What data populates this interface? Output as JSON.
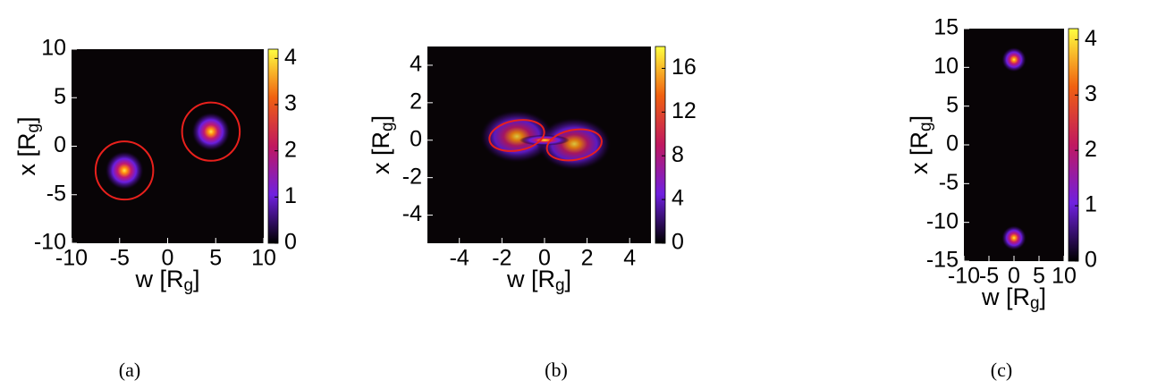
{
  "chart_data": [
    {
      "type": "heatmap",
      "caption": "(a)",
      "xlabel": "w [Rg]",
      "ylabel": "x [Rg]",
      "xlim": [
        -10,
        10
      ],
      "ylim": [
        -10,
        10
      ],
      "xticks": [
        -10,
        -5,
        0,
        5,
        10
      ],
      "yticks": [
        -10,
        -5,
        0,
        5,
        10
      ],
      "clim": [
        0,
        4.2
      ],
      "cticks": [
        0,
        1,
        2,
        3,
        4
      ],
      "peaks": [
        {
          "w": -4.5,
          "x": -2.5,
          "value": 4
        },
        {
          "w": 4.5,
          "x": 1.5,
          "value": 4
        }
      ],
      "contours": [
        {
          "w": -4.5,
          "x": -2.5,
          "rw": 3,
          "rx": 3,
          "angle": 0
        },
        {
          "w": 4.5,
          "x": 1.5,
          "rw": 3,
          "rx": 3,
          "angle": 0
        }
      ]
    },
    {
      "type": "heatmap",
      "caption": "(b)",
      "xlabel": "w [Rg]",
      "ylabel": "x [Rg]",
      "xlim": [
        -5.5,
        5
      ],
      "ylim": [
        -5.5,
        5
      ],
      "xticks": [
        -4,
        -2,
        0,
        2,
        4
      ],
      "yticks": [
        -4,
        -2,
        0,
        2,
        4
      ],
      "clim": [
        0,
        18
      ],
      "cticks": [
        0,
        4,
        8,
        12,
        16
      ],
      "peaks": [
        {
          "w": -1.3,
          "x": 0.2,
          "value": 5
        },
        {
          "w": 1.4,
          "x": -0.2,
          "value": 5
        },
        {
          "w": 0,
          "x": 0,
          "value": 17
        }
      ],
      "contours": [
        {
          "w": -1.3,
          "x": 0.25,
          "rw": 1.3,
          "rx": 0.8,
          "angle": -10
        },
        {
          "w": 1.4,
          "x": -0.25,
          "rw": 1.3,
          "rx": 0.8,
          "angle": -10
        }
      ]
    },
    {
      "type": "heatmap",
      "caption": "(c)",
      "xlabel": "w [Rg]",
      "ylabel": "x [Rg]",
      "xlim": [
        -10,
        10
      ],
      "ylim": [
        -15,
        15
      ],
      "xticks": [
        -10,
        -5,
        0,
        5,
        10
      ],
      "yticks": [
        -15,
        -10,
        -5,
        0,
        5,
        10,
        15
      ],
      "clim": [
        0,
        4.2
      ],
      "cticks": [
        0,
        1,
        2,
        3,
        4
      ],
      "peaks": [
        {
          "w": 0,
          "x": 11,
          "value": 4
        },
        {
          "w": 0,
          "x": -12,
          "value": 4
        }
      ],
      "contours": []
    }
  ]
}
